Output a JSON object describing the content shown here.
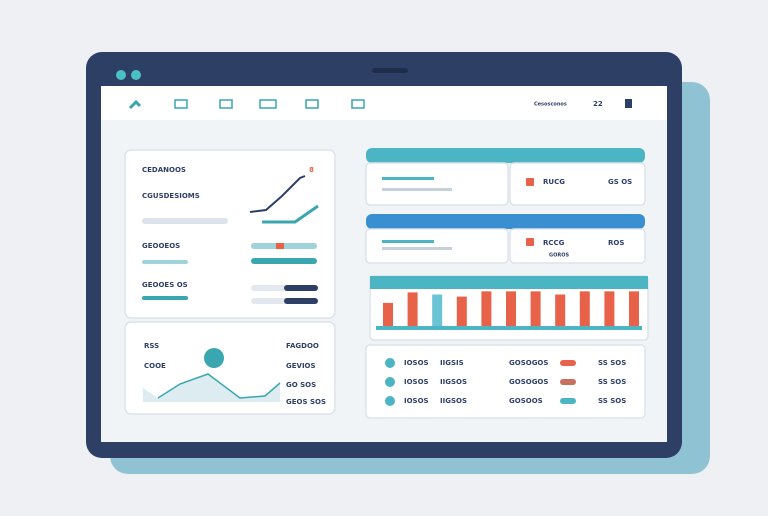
{
  "nav": {
    "account": "Cesosconos",
    "badge": "22"
  },
  "summary_card": {
    "title": "CEDANOOS",
    "subtitle": "CGUSDESIOMS",
    "badge": "8",
    "rows": [
      "GEOOEOS",
      "GEOOES OS"
    ]
  },
  "trend_card": {
    "left": [
      "RSS",
      "COOE"
    ],
    "right": [
      "FAGDOO",
      "GEVIOS",
      "GO SOS",
      "GEOS SOS"
    ]
  },
  "stat_cards": [
    {
      "label": "RUCG",
      "value": "GS OS"
    },
    {
      "label": "RCCG",
      "value": "ROS",
      "note": "GOROS"
    }
  ],
  "bar_chart": {
    "values": [
      22,
      32,
      30,
      28,
      33,
      33,
      33,
      30,
      33,
      33,
      33
    ],
    "colors": [
      "#e8624a",
      "#e8624a",
      "#6bc3d6",
      "#e8624a",
      "#e8624a",
      "#e8624a",
      "#e8624a",
      "#e8624a",
      "#e8624a",
      "#e8624a",
      "#e8624a"
    ]
  },
  "table": {
    "rows": [
      [
        "IOSOS",
        "IIGSIS",
        "GOSOGOS",
        "SS SOS"
      ],
      [
        "IOSOS",
        "IIGSOS",
        "GOSOGOS",
        "SS SOS"
      ],
      [
        "IOSOS",
        "IIGSOS",
        "GOSOOS",
        "SS SOS"
      ]
    ],
    "pill_colors": [
      "#e8624a",
      "#c8705e",
      "#4bb5c4"
    ]
  }
}
